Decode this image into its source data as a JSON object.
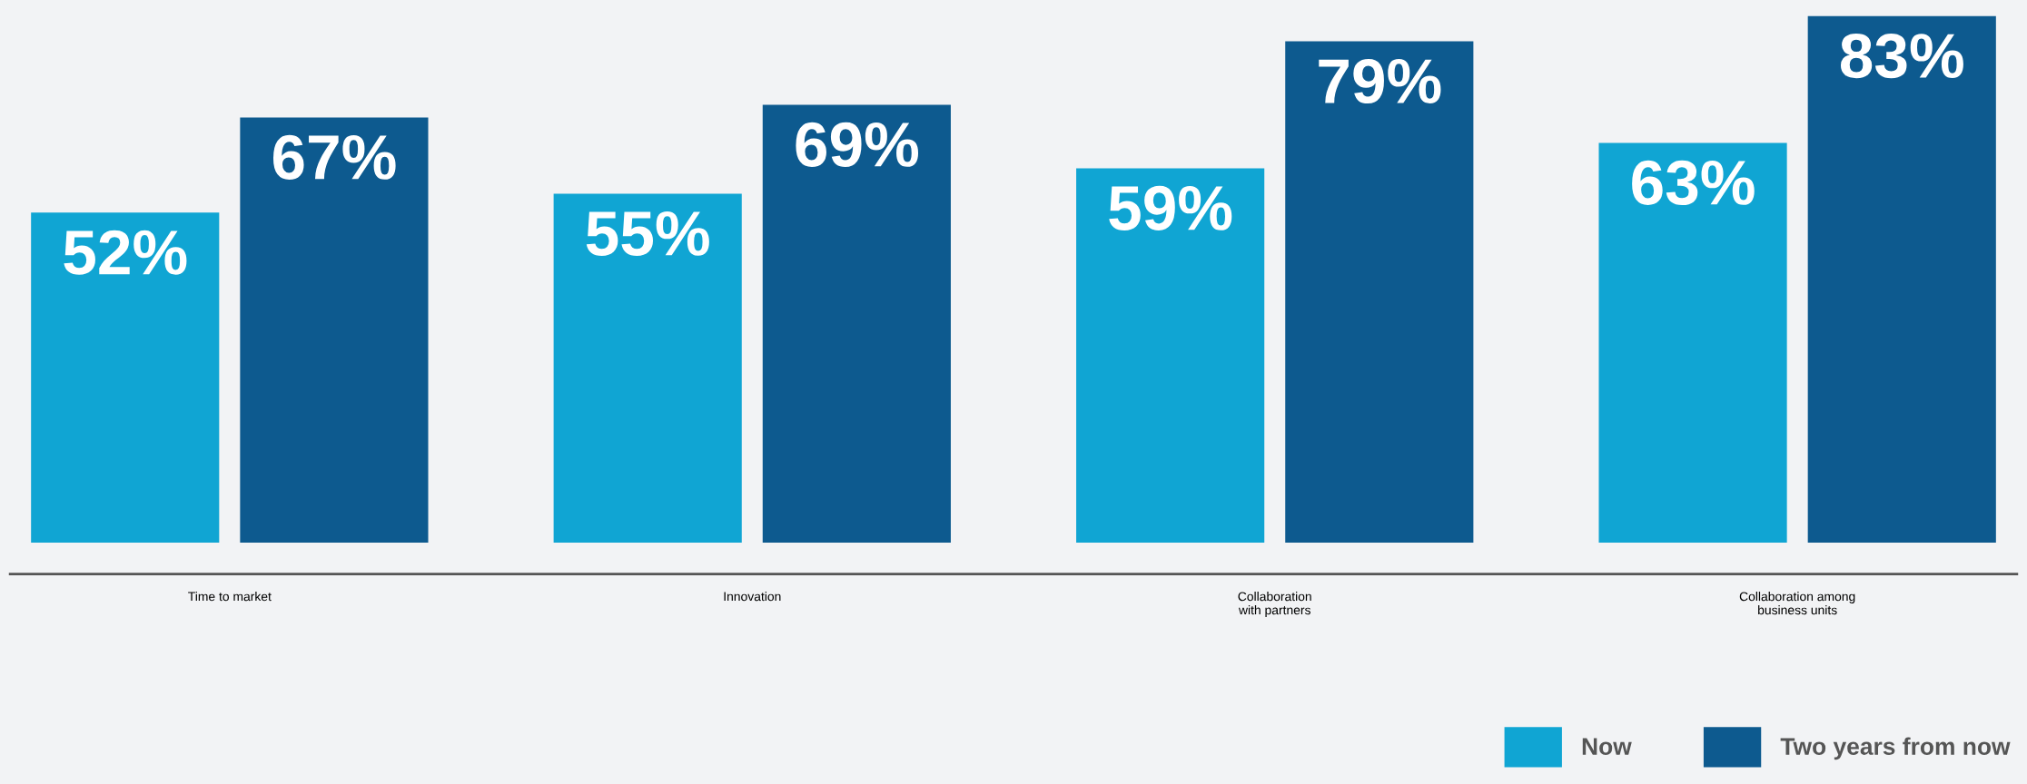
{
  "chart_data": {
    "type": "bar",
    "categories": [
      "Time to market",
      "Innovation",
      "Collaboration\nwith partners",
      "Collaboration among\nbusiness units"
    ],
    "series": [
      {
        "name": "Now",
        "color": "#10a5d3",
        "values": [
          52,
          55,
          59,
          63
        ],
        "value_labels": [
          "52%",
          "55%",
          "59%",
          "63%"
        ]
      },
      {
        "name": "Two years from now",
        "color": "#0d5a8f",
        "values": [
          67,
          69,
          79,
          83
        ],
        "value_labels": [
          "67%",
          "69%",
          "79%",
          "83%"
        ]
      }
    ],
    "legend": "bottom right",
    "grid": false
  }
}
